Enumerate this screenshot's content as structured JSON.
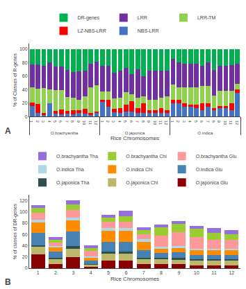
{
  "chart_data": [
    {
      "type": "bar",
      "stacked": true,
      "grid": false,
      "legend": "top",
      "xlabel": "Rice Chromosomes",
      "ylabel": "% of Classes of R-genes",
      "groups": [
        "O.brachyantha",
        "O.brachyantha",
        "O.brachyantha",
        "O.brachyantha",
        "O.brachyantha",
        "O.brachyantha",
        "O.brachyantha",
        "O.brachyantha",
        "O.brachyantha",
        "O.brachyantha",
        "O.brachyantha",
        "O.brachyantha",
        "O.japonica",
        "O.japonica",
        "O.japonica",
        "O.japonica",
        "O.japonica",
        "O.japonica",
        "O.japonica",
        "O.japonica",
        "O.japonica",
        "O.japonica",
        "O.japonica",
        "O.japonica",
        "O.indica",
        "O.indica",
        "O.indica",
        "O.indica",
        "O.indica",
        "O.indica",
        "O.indica",
        "O.indica",
        "O.indica",
        "O.indica",
        "O.indica",
        "O.indica"
      ],
      "categories": [
        "1",
        "2",
        "3",
        "4",
        "5",
        "6",
        "7",
        "8",
        "9",
        "10",
        "11",
        "12",
        "1",
        "2",
        "3",
        "4",
        "5",
        "6",
        "7",
        "8",
        "9",
        "10",
        "11",
        "12",
        "1",
        "2",
        "3",
        "4",
        "5",
        "6",
        "7",
        "8",
        "9",
        "10",
        "11",
        "12"
      ],
      "series": [
        {
          "name": "NBS-LRR",
          "color": "#4472C4",
          "values": [
            16,
            5,
            3,
            20,
            4,
            3,
            4,
            3,
            5,
            4,
            3,
            5,
            22,
            15,
            7,
            5,
            8,
            8,
            5,
            5,
            5,
            5,
            5,
            5,
            20,
            20,
            15,
            15,
            13,
            10,
            15,
            10,
            13,
            13,
            10,
            35
          ]
        },
        {
          "name": "LZ-NBS-LRR",
          "color": "#FF0000",
          "values": [
            5,
            14,
            2,
            0,
            5,
            8,
            5,
            7,
            5,
            8,
            2,
            3,
            3,
            10,
            5,
            8,
            10,
            15,
            8,
            15,
            5,
            5,
            8,
            5,
            5,
            5,
            5,
            3,
            5,
            10,
            5,
            3,
            3,
            3,
            10,
            5
          ]
        },
        {
          "name": "LRR-TM",
          "color": "#92D050",
          "values": [
            22,
            22,
            37,
            20,
            30,
            28,
            20,
            18,
            15,
            18,
            38,
            38,
            12,
            12,
            15,
            15,
            18,
            10,
            15,
            10,
            15,
            15,
            15,
            20,
            22,
            18,
            23,
            25,
            25,
            25,
            25,
            18,
            22,
            22,
            18,
            8
          ]
        },
        {
          "name": "LRR",
          "color": "#7030A0",
          "values": [
            34,
            36,
            33,
            40,
            35,
            35,
            40,
            38,
            42,
            38,
            35,
            35,
            38,
            38,
            38,
            40,
            36,
            30,
            42,
            30,
            43,
            43,
            40,
            38,
            38,
            37,
            35,
            35,
            35,
            30,
            35,
            38,
            37,
            37,
            38,
            30
          ]
        },
        {
          "name": "DR-genes",
          "color": "#00B050",
          "values": [
            23,
            23,
            25,
            20,
            26,
            26,
            31,
            34,
            33,
            32,
            22,
            19,
            25,
            25,
            35,
            32,
            28,
            37,
            30,
            40,
            32,
            32,
            32,
            32,
            15,
            20,
            22,
            22,
            22,
            25,
            20,
            31,
            25,
            25,
            24,
            22
          ]
        }
      ],
      "ylim": [
        0,
        108
      ],
      "yticks": [
        0,
        20,
        40,
        60,
        80,
        100
      ],
      "annotations": [
        "A"
      ]
    },
    {
      "type": "bar",
      "stacked": true,
      "grid": false,
      "legend": "top",
      "xlabel": "Rice Chromosomes",
      "ylabel": "% of classes of DR-genes",
      "categories": [
        "1",
        "2",
        "3",
        "4",
        "5",
        "6",
        "7",
        "8",
        "9",
        "10",
        "11",
        "12"
      ],
      "series": [
        {
          "name": "O.japonica Glu",
          "color": "#8B0000",
          "values": [
            25,
            8,
            20,
            3,
            13,
            13,
            8,
            8,
            7,
            5,
            5,
            5
          ]
        },
        {
          "name": "O.japonica Chi",
          "color": "#BDB76B",
          "values": [
            13,
            8,
            15,
            3,
            13,
            13,
            8,
            8,
            8,
            8,
            8,
            8
          ]
        },
        {
          "name": "O.japonica Tha",
          "color": "#2F4F4F",
          "values": [
            3,
            3,
            5,
            2,
            3,
            3,
            3,
            3,
            3,
            3,
            3,
            3
          ]
        },
        {
          "name": "O.indica Glu",
          "color": "#4682B4",
          "values": [
            22,
            10,
            25,
            5,
            18,
            18,
            13,
            8,
            10,
            8,
            8,
            8
          ]
        },
        {
          "name": "O.indica Chi",
          "color": "#FF8C00",
          "values": [
            18,
            8,
            20,
            5,
            20,
            20,
            15,
            8,
            8,
            8,
            8,
            8
          ]
        },
        {
          "name": "O.indica Tha",
          "color": "#ADD8E6",
          "values": [
            5,
            3,
            5,
            3,
            5,
            5,
            5,
            3,
            3,
            3,
            3,
            3
          ]
        },
        {
          "name": "O.brachyantha Glu",
          "color": "#FF9999",
          "values": [
            13,
            5,
            13,
            10,
            10,
            10,
            8,
            20,
            25,
            20,
            15,
            15
          ]
        },
        {
          "name": "O.brachyantha Chi",
          "color": "#9ACD32",
          "values": [
            8,
            5,
            10,
            5,
            8,
            10,
            8,
            15,
            15,
            15,
            13,
            10
          ]
        },
        {
          "name": "O.brachyantha Tha",
          "color": "#9370DB",
          "values": [
            5,
            5,
            8,
            5,
            5,
            10,
            5,
            5,
            5,
            5,
            8,
            8
          ]
        }
      ],
      "ylim": [
        0,
        130
      ],
      "yticks": [
        0,
        20,
        40,
        60,
        80,
        100,
        120
      ],
      "annotations": [
        "B"
      ]
    }
  ]
}
